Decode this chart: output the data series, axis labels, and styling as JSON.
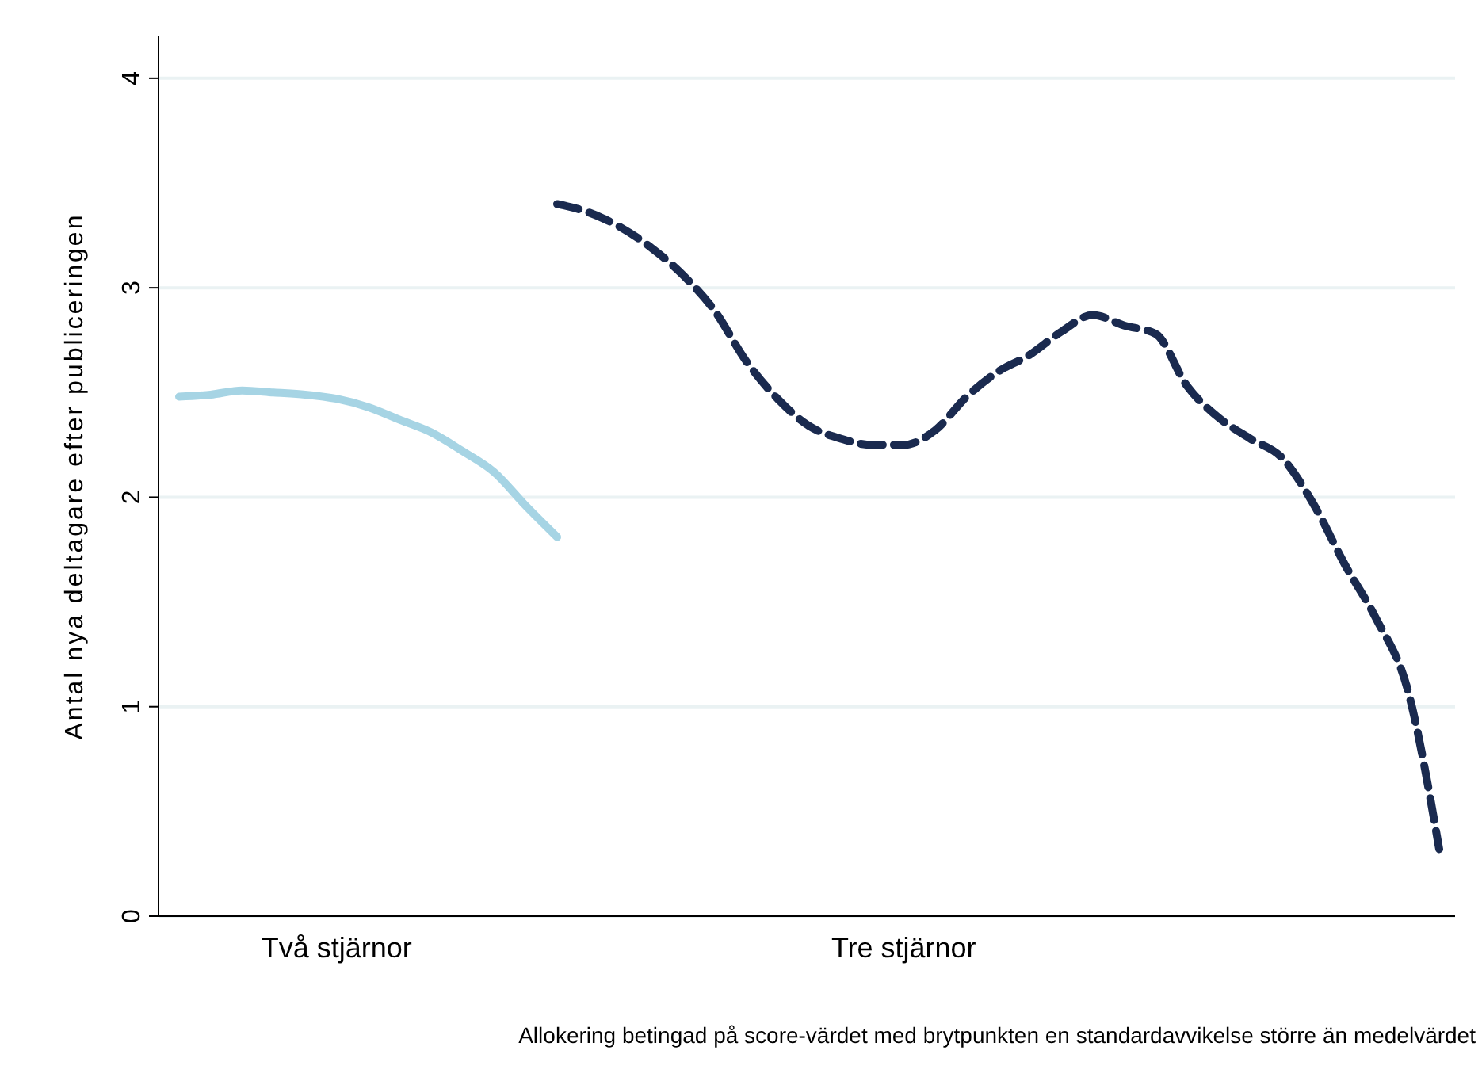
{
  "chart_data": {
    "type": "line",
    "xlabel": "Allokering betingad på score-värdet med brytpunkten en standardavvikelse större än medelvärdet",
    "ylabel": "Antal nya deltagare efter publiceringen",
    "categories": [
      null,
      null,
      null,
      null,
      null,
      "Två stjärnor",
      null,
      null,
      null,
      null,
      null,
      null,
      null,
      null,
      null,
      null,
      null,
      null,
      null,
      null,
      null,
      null,
      null,
      "Tre stjärnor",
      null,
      null,
      null,
      null,
      null,
      null,
      null,
      null,
      null,
      null,
      null,
      null,
      null,
      null,
      null,
      null,
      null
    ],
    "ylim": [
      0,
      4.2
    ],
    "yticks": [
      0,
      1,
      2,
      3,
      4
    ],
    "grid": "y",
    "marker": "none",
    "series": [
      {
        "color": "#a6d4e4",
        "line_style": "solid",
        "values": [
          2.48,
          2.49,
          2.51,
          2.5,
          2.49,
          2.47,
          2.43,
          2.37,
          2.31,
          2.22,
          2.12,
          1.96,
          1.81,
          null,
          null,
          null,
          null,
          null,
          null,
          null,
          null,
          null,
          null,
          null,
          null,
          null,
          null,
          null,
          null,
          null,
          null,
          null,
          null,
          null,
          null,
          null,
          null,
          null,
          null,
          null,
          null
        ]
      },
      {
        "color": "#1a2a4f",
        "line_style": "dashed",
        "values": [
          null,
          null,
          null,
          null,
          null,
          null,
          null,
          null,
          null,
          null,
          null,
          null,
          3.4,
          3.36,
          3.29,
          3.19,
          3.06,
          2.89,
          2.65,
          2.47,
          2.34,
          2.28,
          2.25,
          2.25,
          2.32,
          2.48,
          2.6,
          2.68,
          2.79,
          2.87,
          2.82,
          2.78,
          2.53,
          2.38,
          2.28,
          2.19,
          1.97,
          1.68,
          1.42,
          1.08,
          0.32
        ]
      }
    ]
  }
}
